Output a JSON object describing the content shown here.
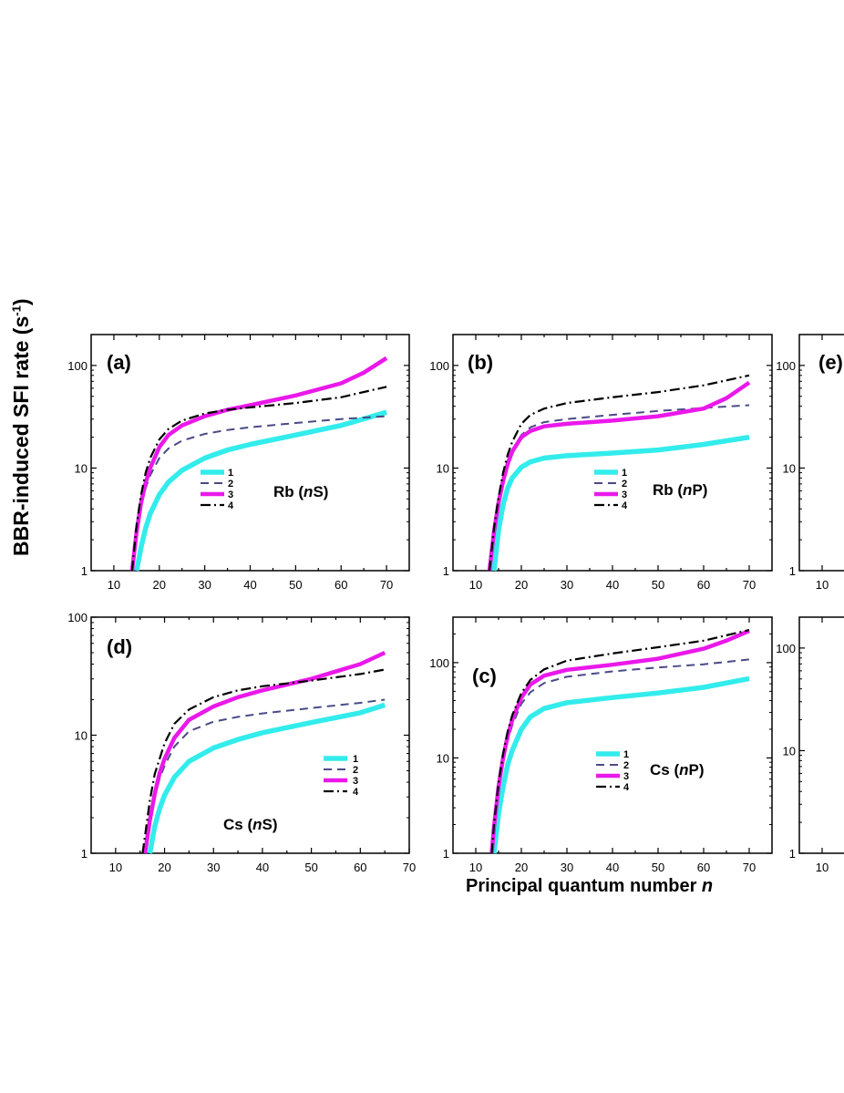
{
  "figure": {
    "y_axis_label": "BBR-induced SFI rate (s",
    "y_axis_label_sup": "-1",
    "y_axis_label_close": ")",
    "x_axis_label": "Principal quantum number",
    "x_axis_label_var": "n"
  },
  "colors": {
    "1": "#33ecec",
    "2": "#4a4a86",
    "3": "#ea18ea",
    "4": "#000000"
  },
  "chart_data": [
    {
      "type": "line",
      "panel": "a",
      "tag": "(a)",
      "label_main": "Rb (",
      "label_var": "n",
      "label_end": "S)",
      "yscale": "log",
      "xlim": [
        5,
        75
      ],
      "ylim": [
        1,
        200
      ],
      "xticks": [
        10,
        20,
        30,
        40,
        50,
        60,
        70
      ],
      "yticks": [
        1,
        10,
        100
      ],
      "legend_pos": "center",
      "series": [
        {
          "name": "1",
          "x": [
            15,
            16,
            17,
            18,
            20,
            22,
            25,
            30,
            35,
            40,
            50,
            60,
            70
          ],
          "y": [
            1,
            1.7,
            2.6,
            3.6,
            5.5,
            7.3,
            9.5,
            12.5,
            15,
            17,
            21,
            26,
            35
          ]
        },
        {
          "name": "2",
          "x": [
            14,
            15,
            16,
            17,
            18,
            20,
            22,
            25,
            30,
            35,
            40,
            50,
            60,
            70
          ],
          "y": [
            1,
            2.3,
            4.2,
            6.4,
            8.5,
            12.5,
            15.5,
            18.5,
            21.5,
            23.5,
            25,
            27.5,
            30,
            32
          ]
        },
        {
          "name": "3",
          "x": [
            14,
            15,
            16,
            17,
            18,
            20,
            22,
            25,
            30,
            35,
            40,
            50,
            60,
            65,
            70
          ],
          "y": [
            1,
            2.4,
            4.6,
            7.2,
            10,
            16,
            21,
            26,
            32,
            37,
            41,
            51,
            67,
            85,
            118
          ]
        },
        {
          "name": "4",
          "x": [
            14,
            15,
            16,
            17,
            18,
            20,
            22,
            25,
            30,
            35,
            40,
            50,
            60,
            70
          ],
          "y": [
            1,
            2.8,
            5.5,
            9,
            12.5,
            19,
            24,
            29,
            34,
            37,
            39,
            43,
            49,
            62
          ]
        }
      ]
    },
    {
      "type": "line",
      "panel": "b",
      "tag": "(b)",
      "label_main": "Rb (",
      "label_var": "n",
      "label_end": "P)",
      "yscale": "log",
      "xlim": [
        5,
        75
      ],
      "ylim": [
        1,
        200
      ],
      "xticks": [
        10,
        20,
        30,
        40,
        50,
        60,
        70
      ],
      "yticks": [
        1,
        10,
        100
      ],
      "legend_pos": "center",
      "series": [
        {
          "name": "1",
          "x": [
            14,
            15,
            16,
            17,
            18,
            20,
            22,
            25,
            30,
            40,
            50,
            60,
            70
          ],
          "y": [
            1,
            2.5,
            4.4,
            6.4,
            8,
            10.2,
            11.5,
            12.5,
            13.2,
            14,
            15,
            17,
            20
          ]
        },
        {
          "name": "2",
          "x": [
            13,
            14,
            15,
            16,
            17,
            18,
            20,
            22,
            25,
            30,
            40,
            50,
            60,
            70
          ],
          "y": [
            1,
            2.5,
            5,
            8,
            11.5,
            15,
            21,
            25,
            28,
            30,
            33,
            36,
            38.5,
            41
          ]
        },
        {
          "name": "3",
          "x": [
            13,
            14,
            15,
            16,
            17,
            18,
            20,
            22,
            25,
            30,
            40,
            50,
            60,
            65,
            70
          ],
          "y": [
            1,
            2.4,
            4.6,
            7.5,
            11,
            14.5,
            20,
            23,
            25.5,
            27,
            29,
            32,
            38,
            48,
            68
          ]
        },
        {
          "name": "4",
          "x": [
            13,
            14,
            15,
            16,
            17,
            18,
            20,
            22,
            25,
            30,
            40,
            50,
            60,
            70
          ],
          "y": [
            1,
            2.6,
            5.2,
            9,
            13.5,
            18,
            27,
            33,
            38,
            43,
            49,
            55,
            64,
            80
          ]
        }
      ]
    },
    {
      "type": "line",
      "panel": "d",
      "tag": "(d)",
      "label_main": "Cs (",
      "label_var": "n",
      "label_end": "S)",
      "yscale": "log",
      "xlim": [
        5,
        70
      ],
      "ylim": [
        1,
        100
      ],
      "xticks": [
        10,
        20,
        30,
        40,
        50,
        60,
        70
      ],
      "yticks": [
        1,
        10,
        100
      ],
      "legend_pos": "right",
      "series": [
        {
          "name": "1",
          "x": [
            17,
            18,
            19,
            20,
            22,
            25,
            30,
            35,
            40,
            50,
            60,
            65
          ],
          "y": [
            1,
            1.7,
            2.4,
            3.1,
            4.4,
            6,
            7.8,
            9.2,
            10.5,
            12.8,
            15.5,
            18
          ]
        },
        {
          "name": "2",
          "x": [
            16,
            17,
            18,
            19,
            20,
            22,
            25,
            30,
            35,
            40,
            50,
            60,
            65
          ],
          "y": [
            1,
            1.9,
            3,
            4.3,
            5.5,
            8,
            10.8,
            13,
            14.3,
            15.3,
            17,
            18.8,
            20
          ]
        },
        {
          "name": "3",
          "x": [
            16,
            17,
            18,
            19,
            20,
            22,
            25,
            30,
            35,
            40,
            50,
            60,
            65
          ],
          "y": [
            1,
            1.9,
            3.2,
            4.8,
            6.3,
            9.5,
            13.5,
            17.5,
            21,
            24,
            30,
            40,
            50
          ]
        },
        {
          "name": "4",
          "x": [
            15.5,
            16,
            17,
            18,
            20,
            22,
            25,
            30,
            35,
            40,
            50,
            60,
            65
          ],
          "y": [
            1,
            1.4,
            2.8,
            4.7,
            8.5,
            12.5,
            16.5,
            21,
            24,
            26,
            29,
            33,
            36
          ]
        }
      ]
    },
    {
      "type": "line",
      "panel": "c",
      "tag": "(c)",
      "label_main": "Cs (",
      "label_var": "n",
      "label_end": "P)",
      "yscale": "log",
      "xlim": [
        5,
        75
      ],
      "ylim": [
        1,
        300
      ],
      "xticks": [
        10,
        20,
        30,
        40,
        50,
        60,
        70
      ],
      "yticks": [
        1,
        10,
        100
      ],
      "legend_pos": "center",
      "series": [
        {
          "name": "1",
          "x": [
            14,
            15,
            16,
            17,
            18,
            20,
            22,
            25,
            30,
            40,
            50,
            60,
            70
          ],
          "y": [
            1,
            2.6,
            5,
            8.5,
            12,
            20,
            27,
            33,
            38,
            43,
            48,
            55,
            68
          ]
        },
        {
          "name": "2",
          "x": [
            13.5,
            14,
            15,
            16,
            17,
            18,
            20,
            22,
            25,
            30,
            40,
            50,
            60,
            70
          ],
          "y": [
            1,
            1.8,
            4.5,
            9,
            15,
            22,
            37,
            49,
            61,
            71,
            81,
            89,
            96,
            108
          ]
        },
        {
          "name": "3",
          "x": [
            13.5,
            14,
            15,
            16,
            17,
            18,
            20,
            22,
            25,
            30,
            40,
            50,
            60,
            65,
            70
          ],
          "y": [
            1,
            1.9,
            5,
            10,
            17,
            25,
            43,
            59,
            73,
            84,
            95,
            110,
            140,
            170,
            215
          ]
        },
        {
          "name": "4",
          "x": [
            13.5,
            14,
            15,
            16,
            17,
            18,
            20,
            22,
            25,
            30,
            40,
            50,
            60,
            70
          ],
          "y": [
            1,
            2,
            5.5,
            11,
            19,
            28,
            48,
            66,
            85,
            105,
            125,
            145,
            170,
            220
          ]
        }
      ]
    },
    {
      "type": "line",
      "panel": "e",
      "tag": "(e)",
      "yscale": "log",
      "xlim": [
        5,
        75
      ],
      "ylim": [
        1,
        200
      ],
      "xticks": [
        10
      ],
      "yticks": [
        1,
        10,
        100
      ],
      "series": []
    },
    {
      "type": "line",
      "panel": "f",
      "tag": "",
      "yscale": "log",
      "xlim": [
        5,
        75
      ],
      "ylim": [
        1,
        200
      ],
      "xticks": [
        10
      ],
      "yticks": [
        1,
        10,
        100
      ],
      "series": []
    }
  ]
}
